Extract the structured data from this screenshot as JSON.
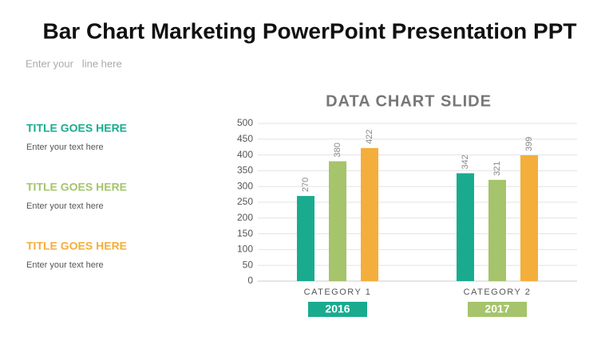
{
  "header": {
    "title": "Bar Chart Marketing PowerPoint Presentation PPT",
    "subtitle": "Enter your   line here"
  },
  "items": [
    {
      "title": "TITLE GOES HERE",
      "text": "Enter your text here",
      "color": "#1aab8f"
    },
    {
      "title": "TITLE GOES HERE",
      "text": "Enter your text here",
      "color": "#a5c46b"
    },
    {
      "title": "TITLE GOES HERE",
      "text": "Enter your text here",
      "color": "#f4ae3b"
    }
  ],
  "chart_data": {
    "type": "bar",
    "title": "DATA CHART SLIDE",
    "categories": [
      "CATEGORY 1",
      "CATEGORY 2"
    ],
    "category_badges": [
      "2016",
      "2017"
    ],
    "badge_colors": [
      "#1aab8f",
      "#a5c46b"
    ],
    "series": [
      {
        "color": "#1aab8f",
        "values": [
          270,
          342
        ]
      },
      {
        "color": "#a5c46b",
        "values": [
          380,
          321
        ]
      },
      {
        "color": "#f4ae3b",
        "values": [
          422,
          399
        ]
      }
    ],
    "ylim": [
      0,
      500
    ],
    "yticks": [
      0,
      50,
      100,
      150,
      200,
      250,
      300,
      350,
      400,
      450,
      500
    ],
    "grid": true
  }
}
